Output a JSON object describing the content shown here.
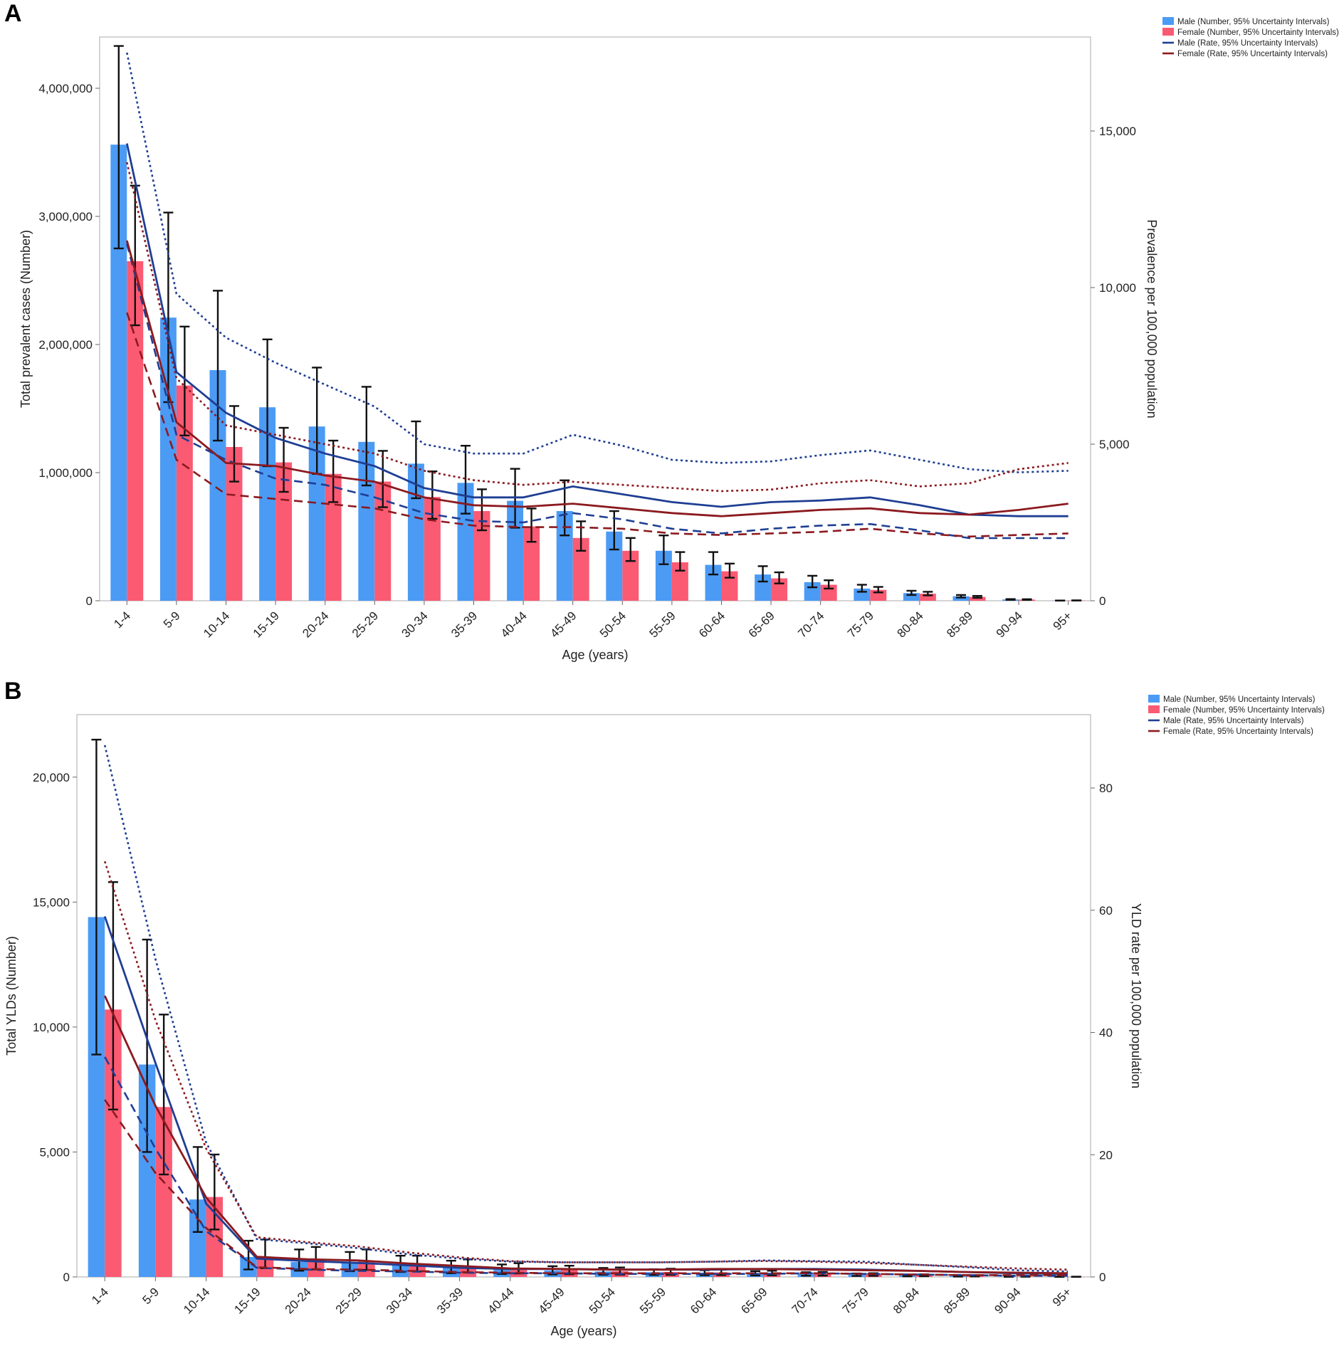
{
  "chart_data": [
    {
      "id": "A",
      "panel_label": "A",
      "type": "bar",
      "xlabel": "Age (years)",
      "ylabel": "Total prevalent cases (Number)",
      "y2label": "Prevalence per 100,000 population",
      "ylim": [
        0,
        4400000
      ],
      "y2lim": [
        0,
        18000
      ],
      "yticks": [
        0,
        1000000,
        2000000,
        3000000,
        4000000
      ],
      "ytick_labels": [
        "0",
        "1,000,000",
        "2,000,000",
        "3,000,000",
        "4,000,000"
      ],
      "y2ticks": [
        0,
        5000,
        10000,
        15000
      ],
      "y2tick_labels": [
        "0",
        "5,000",
        "10,000",
        "15,000"
      ],
      "categories": [
        "1-4",
        "5-9",
        "10-14",
        "15-19",
        "20-24",
        "25-29",
        "30-34",
        "35-39",
        "40-44",
        "45-49",
        "50-54",
        "55-59",
        "60-64",
        "65-69",
        "70-74",
        "75-79",
        "80-84",
        "85-89",
        "90-94",
        "95+"
      ],
      "legend": [
        {
          "label": "Male (Number, 95% Uncertainty Intervals)",
          "color": "#4b9bf5",
          "kind": "bar"
        },
        {
          "label": "Female (Number, 95% Uncertainty Intervals)",
          "color": "#fb5a73",
          "kind": "bar"
        },
        {
          "label": "Male (Rate, 95% Uncertainty Intervals)",
          "color": "#1f3e93",
          "kind": "line"
        },
        {
          "label": "Female (Rate, 95% Uncertainty Intervals)",
          "color": "#8b1a1f",
          "kind": "line"
        }
      ],
      "bar_series": [
        {
          "name": "Male (Number)",
          "color": "#4b9bf5",
          "values": [
            3560000,
            2210000,
            1800000,
            1510000,
            1360000,
            1240000,
            1070000,
            920000,
            780000,
            700000,
            540000,
            390000,
            280000,
            205000,
            145000,
            95000,
            60000,
            35000,
            10000,
            1500
          ],
          "lower": [
            2750000,
            1550000,
            1250000,
            1050000,
            990000,
            900000,
            800000,
            680000,
            570000,
            510000,
            400000,
            285000,
            205000,
            150000,
            105000,
            70000,
            45000,
            25000,
            7000,
            1000
          ],
          "upper": [
            4330000,
            3030000,
            2420000,
            2040000,
            1820000,
            1670000,
            1400000,
            1210000,
            1030000,
            940000,
            700000,
            510000,
            380000,
            270000,
            195000,
            125000,
            78000,
            45000,
            13000,
            2000
          ]
        },
        {
          "name": "Female (Number)",
          "color": "#fb5a73",
          "values": [
            2650000,
            1680000,
            1200000,
            1080000,
            990000,
            930000,
            810000,
            700000,
            580000,
            490000,
            390000,
            300000,
            230000,
            175000,
            125000,
            85000,
            55000,
            30000,
            9000,
            2500
          ],
          "lower": [
            2150000,
            1290000,
            930000,
            850000,
            770000,
            730000,
            640000,
            550000,
            460000,
            390000,
            310000,
            235000,
            180000,
            135000,
            95000,
            65000,
            42000,
            23000,
            7000,
            1800
          ],
          "upper": [
            3240000,
            2140000,
            1520000,
            1350000,
            1250000,
            1170000,
            1010000,
            870000,
            720000,
            620000,
            490000,
            380000,
            290000,
            222000,
            160000,
            108000,
            70000,
            38000,
            12000,
            3200
          ]
        }
      ],
      "line_series": [
        {
          "name": "Male (Rate)",
          "color": "#1f3e93",
          "values": [
            14600,
            7300,
            6000,
            5200,
            4700,
            4300,
            3600,
            3300,
            3300,
            3650,
            3400,
            3150,
            3000,
            3150,
            3200,
            3300,
            3050,
            2750,
            2700,
            2700
          ],
          "lower": [
            11400,
            5300,
            4500,
            3900,
            3700,
            3300,
            2800,
            2550,
            2500,
            2800,
            2600,
            2300,
            2150,
            2300,
            2400,
            2450,
            2250,
            2000,
            2000,
            2000
          ],
          "upper": [
            17500,
            9800,
            8400,
            7600,
            6900,
            6200,
            5000,
            4700,
            4700,
            5300,
            4950,
            4500,
            4400,
            4450,
            4650,
            4800,
            4500,
            4200,
            4100,
            4150
          ]
        },
        {
          "name": "Female (Rate)",
          "color": "#8b1a1f",
          "values": [
            11500,
            5700,
            4400,
            4300,
            4000,
            3800,
            3300,
            3050,
            3000,
            3100,
            2950,
            2800,
            2700,
            2800,
            2900,
            2950,
            2800,
            2750,
            2900,
            3100
          ],
          "lower": [
            9200,
            4500,
            3400,
            3250,
            3100,
            2950,
            2600,
            2400,
            2350,
            2350,
            2300,
            2150,
            2100,
            2150,
            2200,
            2300,
            2150,
            2050,
            2100,
            2150
          ],
          "upper": [
            14000,
            7100,
            5600,
            5300,
            5000,
            4700,
            4150,
            3850,
            3700,
            3800,
            3700,
            3600,
            3500,
            3550,
            3750,
            3850,
            3650,
            3750,
            4200,
            4400
          ]
        }
      ]
    },
    {
      "id": "B",
      "panel_label": "B",
      "type": "bar",
      "xlabel": "Age (years)",
      "ylabel": "Total YLDs (Number)",
      "y2label": "YLD rate per 100,000 population",
      "ylim": [
        0,
        22500
      ],
      "y2lim": [
        0,
        92
      ],
      "yticks": [
        0,
        5000,
        10000,
        15000,
        20000
      ],
      "ytick_labels": [
        "0",
        "5,000",
        "10,000",
        "15,000",
        "20,000"
      ],
      "y2ticks": [
        0,
        20,
        40,
        60,
        80
      ],
      "y2tick_labels": [
        "0",
        "20",
        "40",
        "60",
        "80"
      ],
      "categories": [
        "1-4",
        "5-9",
        "10-14",
        "15-19",
        "20-24",
        "25-29",
        "30-34",
        "35-39",
        "40-44",
        "45-49",
        "50-54",
        "55-59",
        "60-64",
        "65-69",
        "70-74",
        "75-79",
        "80-84",
        "85-89",
        "90-94",
        "95+"
      ],
      "legend": [
        {
          "label": "Male (Number, 95% Uncertainty Intervals)",
          "color": "#4b9bf5",
          "kind": "bar"
        },
        {
          "label": "Female (Number, 95% Uncertainty Intervals)",
          "color": "#fb5a73",
          "kind": "bar"
        },
        {
          "label": "Male (Rate, 95% Uncertainty Intervals)",
          "color": "#1f3e93",
          "kind": "line"
        },
        {
          "label": "Female (Rate, 95% Uncertainty Intervals)",
          "color": "#8b1a1f",
          "kind": "line"
        }
      ],
      "bar_series": [
        {
          "name": "Male (Number)",
          "color": "#4b9bf5",
          "values": [
            14400,
            8500,
            3100,
            800,
            600,
            550,
            480,
            380,
            300,
            260,
            220,
            190,
            170,
            150,
            120,
            90,
            60,
            40,
            15,
            5
          ],
          "lower": [
            8900,
            5000,
            1800,
            300,
            250,
            230,
            200,
            150,
            120,
            100,
            90,
            80,
            70,
            60,
            50,
            40,
            25,
            15,
            5,
            2
          ],
          "upper": [
            21500,
            13500,
            5200,
            1450,
            1100,
            1000,
            850,
            650,
            500,
            430,
            360,
            310,
            270,
            230,
            190,
            140,
            95,
            60,
            25,
            8
          ],
          "hidden": []
        },
        {
          "name": "Female (Number)",
          "color": "#fb5a73",
          "values": [
            10700,
            6800,
            3200,
            800,
            700,
            650,
            520,
            420,
            330,
            270,
            230,
            200,
            180,
            160,
            130,
            100,
            70,
            45,
            20,
            8
          ],
          "lower": [
            6700,
            4100,
            1900,
            350,
            300,
            280,
            220,
            180,
            140,
            110,
            95,
            85,
            75,
            65,
            55,
            45,
            30,
            20,
            8,
            3
          ],
          "upper": [
            15800,
            10500,
            4900,
            1500,
            1200,
            1100,
            850,
            700,
            550,
            450,
            380,
            330,
            290,
            250,
            200,
            150,
            105,
            70,
            30,
            12
          ]
        }
      ],
      "line_series": [
        {
          "name": "Male (Rate)",
          "color": "#1f3e93",
          "values": [
            59,
            35,
            12,
            3,
            2.6,
            2.3,
            1.9,
            1.5,
            1.3,
            1.3,
            1.2,
            1.2,
            1.2,
            1.3,
            1.3,
            1.2,
            1.0,
            0.8,
            0.6,
            0.5
          ],
          "lower": [
            36,
            21,
            7.5,
            1.5,
            1.2,
            1.0,
            0.9,
            0.7,
            0.6,
            0.6,
            0.5,
            0.5,
            0.5,
            0.5,
            0.6,
            0.5,
            0.4,
            0.3,
            0.2,
            0.2
          ],
          "upper": [
            87,
            52,
            22,
            6.2,
            5.5,
            4.7,
            3.7,
            3.0,
            2.5,
            2.4,
            2.4,
            2.4,
            2.5,
            2.7,
            2.6,
            2.5,
            2.0,
            1.6,
            1.1,
            0.9
          ]
        },
        {
          "name": "Female (Rate)",
          "color": "#8b1a1f",
          "values": [
            46,
            28,
            13,
            3.3,
            2.9,
            2.7,
            2.2,
            1.8,
            1.4,
            1.3,
            1.2,
            1.2,
            1.3,
            1.3,
            1.2,
            1.1,
            1.0,
            0.8,
            0.7,
            0.6
          ],
          "lower": [
            29,
            17,
            8,
            1.6,
            1.3,
            1.2,
            1.0,
            0.8,
            0.7,
            0.6,
            0.6,
            0.6,
            0.6,
            0.6,
            0.6,
            0.5,
            0.4,
            0.3,
            0.3,
            0.3
          ],
          "upper": [
            68,
            42,
            21,
            6.5,
            5.7,
            5.0,
            4.0,
            3.2,
            2.6,
            2.4,
            2.4,
            2.4,
            2.5,
            2.6,
            2.5,
            2.3,
            2.0,
            1.7,
            1.4,
            1.2
          ]
        }
      ]
    }
  ]
}
